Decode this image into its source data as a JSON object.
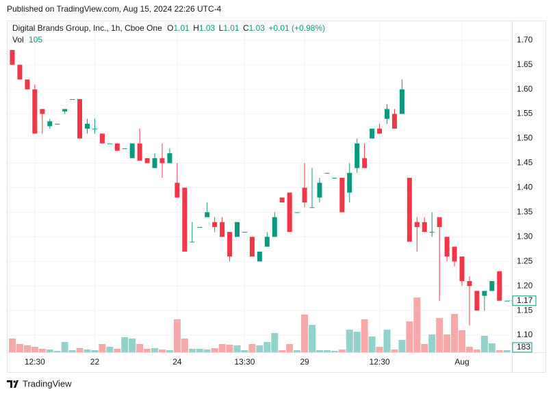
{
  "header": {
    "published": "Published on TradingView.com, Aug 15, 2024 22:26 UTC-4"
  },
  "footer": {
    "brand": "TradingView"
  },
  "chart_data": {
    "type": "candlestick",
    "legend": {
      "symbol": "Digital Brands Group, Inc., 1h, Cboe One",
      "o_label": "O",
      "o": 1.01,
      "h_label": "H",
      "h": 1.03,
      "l_label": "L",
      "l": 1.01,
      "c_label": "C",
      "c": 1.03,
      "change": "+0.01 (+0.98%)",
      "vol_label": "Vol",
      "vol": 105
    },
    "last_price": 1.17,
    "last_volume": 183,
    "up_color": "#089981",
    "down_color": "#f23645",
    "up_volume_color": "#92d2cc",
    "down_volume_color": "#f7a9a7",
    "grid": true,
    "categories": [
      null,
      null,
      null,
      "12:30",
      null,
      null,
      null,
      null,
      null,
      null,
      null,
      "22",
      null,
      null,
      null,
      null,
      null,
      null,
      null,
      null,
      null,
      null,
      "24",
      null,
      null,
      null,
      null,
      null,
      null,
      null,
      null,
      "13:30",
      null,
      null,
      null,
      null,
      null,
      null,
      null,
      "29",
      null,
      null,
      null,
      null,
      null,
      null,
      null,
      null,
      null,
      "12:30",
      null,
      null,
      null,
      null,
      null,
      null,
      null,
      null,
      null,
      null,
      "Aug",
      null,
      null,
      null,
      null,
      null,
      null
    ],
    "open": [
      1.68,
      1.65,
      1.62,
      1.6,
      1.56,
      1.525,
      1.53,
      1.555,
      1.58,
      1.58,
      1.52,
      1.52,
      1.51,
      1.49,
      1.49,
      1.48,
      1.46,
      1.49,
      1.46,
      1.44,
      1.46,
      1.45,
      1.41,
      1.4,
      1.29,
      1.32,
      1.34,
      1.33,
      1.33,
      1.31,
      1.3,
      1.31,
      1.3,
      1.25,
      1.28,
      1.3,
      1.38,
      1.39,
      1.35,
      1.4,
      1.36,
      1.38,
      1.43,
      1.42,
      1.42,
      1.39,
      1.44,
      1.46,
      1.5,
      1.52,
      1.54,
      1.55,
      1.55,
      1.42,
      1.33,
      1.33,
      1.31,
      1.34,
      1.3,
      1.28,
      1.26,
      1.21,
      1.19,
      1.18,
      1.19,
      1.23,
      1.17
    ],
    "high": [
      1.68,
      1.65,
      1.62,
      1.61,
      1.56,
      1.54,
      1.53,
      1.56,
      1.58,
      1.58,
      1.54,
      1.54,
      1.51,
      1.49,
      1.49,
      1.48,
      1.49,
      1.52,
      1.46,
      1.47,
      1.49,
      1.48,
      1.45,
      1.4,
      1.33,
      1.32,
      1.37,
      1.34,
      1.34,
      1.31,
      1.33,
      1.31,
      1.3,
      1.27,
      1.31,
      1.35,
      1.38,
      1.39,
      1.35,
      1.45,
      1.44,
      1.42,
      1.43,
      1.42,
      1.42,
      1.45,
      1.5,
      1.49,
      1.52,
      1.53,
      1.57,
      1.56,
      1.62,
      1.42,
      1.34,
      1.34,
      1.35,
      1.34,
      1.3,
      1.28,
      1.26,
      1.22,
      1.19,
      1.19,
      1.21,
      1.23,
      1.17
    ],
    "low": [
      1.65,
      1.62,
      1.6,
      1.51,
      1.51,
      1.52,
      1.53,
      1.55,
      1.58,
      1.5,
      1.51,
      1.51,
      1.49,
      1.49,
      1.475,
      1.48,
      1.46,
      1.455,
      1.45,
      1.44,
      1.42,
      1.45,
      1.38,
      1.27,
      1.29,
      1.32,
      1.34,
      1.31,
      1.3,
      1.25,
      1.3,
      1.31,
      1.26,
      1.25,
      1.28,
      1.3,
      1.37,
      1.31,
      1.35,
      1.36,
      1.36,
      1.37,
      1.43,
      1.42,
      1.35,
      1.37,
      1.43,
      1.44,
      1.5,
      1.51,
      1.53,
      1.52,
      1.55,
      1.29,
      1.27,
      1.31,
      1.3,
      1.17,
      1.25,
      1.24,
      1.2,
      1.12,
      1.15,
      1.15,
      1.19,
      1.17,
      1.17
    ],
    "close": [
      1.65,
      1.62,
      1.6,
      1.51,
      1.55,
      1.535,
      1.53,
      1.56,
      1.58,
      1.5,
      1.53,
      1.52,
      1.49,
      1.49,
      1.475,
      1.48,
      1.49,
      1.455,
      1.45,
      1.46,
      1.45,
      1.47,
      1.38,
      1.27,
      1.29,
      1.32,
      1.35,
      1.32,
      1.3,
      1.26,
      1.33,
      1.31,
      1.26,
      1.27,
      1.3,
      1.34,
      1.37,
      1.31,
      1.35,
      1.37,
      1.36,
      1.41,
      1.43,
      1.42,
      1.35,
      1.43,
      1.49,
      1.44,
      1.52,
      1.51,
      1.56,
      1.52,
      1.6,
      1.29,
      1.32,
      1.31,
      1.31,
      1.32,
      1.26,
      1.25,
      1.21,
      1.2,
      1.15,
      1.19,
      1.21,
      1.17,
      1.17
    ],
    "volume": [
      20,
      12,
      10,
      8,
      5,
      4,
      2,
      15,
      3,
      6,
      4,
      3,
      12,
      8,
      5,
      22,
      20,
      12,
      5,
      6,
      4,
      3,
      48,
      20,
      5,
      5,
      4,
      6,
      12,
      11,
      10,
      3,
      12,
      10,
      15,
      28,
      3,
      12,
      3,
      55,
      40,
      3,
      3,
      2,
      4,
      33,
      30,
      48,
      23,
      8,
      33,
      4,
      18,
      45,
      80,
      12,
      26,
      50,
      26,
      56,
      32,
      8,
      4,
      24,
      13,
      3,
      3
    ],
    "ylim": [
      1.0653,
      1.7386
    ],
    "yticks": [
      {
        "value": 1.1,
        "label": "1.10"
      },
      1.15,
      {
        "value": 1.2,
        "label": "1.20"
      },
      1.25,
      {
        "value": 1.3,
        "label": "1.30"
      },
      1.35,
      {
        "value": 1.4,
        "label": "1.40"
      },
      1.45,
      {
        "value": 1.5,
        "label": "1.50"
      },
      1.55,
      {
        "value": 1.6,
        "label": "1.60"
      },
      1.65,
      {
        "value": 1.7,
        "label": "1.70"
      }
    ]
  }
}
